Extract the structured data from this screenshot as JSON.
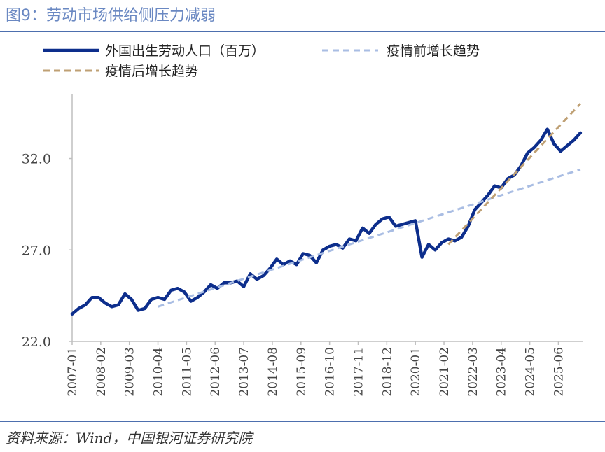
{
  "header": {
    "title": "图9：劳动市场供给侧压力减弱"
  },
  "footer": {
    "source": "资料来源：Wind，中国银河证券研究院"
  },
  "chart_data": {
    "type": "line",
    "title": "图9：劳动市场供给侧压力减弱",
    "xlabel": "",
    "ylabel": "",
    "ylim": [
      22,
      35.5
    ],
    "xlim": [
      "2007-01",
      "2026-05"
    ],
    "yticks": [
      22.0,
      27.0,
      32.0
    ],
    "ytick_labels": [
      "22.0",
      "27.0",
      "32.0"
    ],
    "xticks": [
      "2007-01",
      "2008-02",
      "2009-03",
      "2010-04",
      "2011-05",
      "2012-06",
      "2013-07",
      "2014-08",
      "2015-09",
      "2016-10",
      "2017-11",
      "2018-12",
      "2020-01",
      "2021-02",
      "2022-03",
      "2023-04",
      "2024-05",
      "2025-06"
    ],
    "grid": false,
    "legend_position": "top-left",
    "series": [
      {
        "name": "外国出生劳动人口（百万）",
        "color": "#0d2e8c",
        "style": "solid",
        "points": [
          [
            "2007-01",
            23.5
          ],
          [
            "2007-04",
            23.8
          ],
          [
            "2007-07",
            24.0
          ],
          [
            "2007-10",
            24.4
          ],
          [
            "2008-01",
            24.4
          ],
          [
            "2008-04",
            24.1
          ],
          [
            "2008-07",
            23.9
          ],
          [
            "2008-10",
            24.0
          ],
          [
            "2009-01",
            24.6
          ],
          [
            "2009-04",
            24.3
          ],
          [
            "2009-07",
            23.7
          ],
          [
            "2009-10",
            23.8
          ],
          [
            "2010-01",
            24.3
          ],
          [
            "2010-04",
            24.4
          ],
          [
            "2010-07",
            24.3
          ],
          [
            "2010-10",
            24.8
          ],
          [
            "2011-01",
            24.9
          ],
          [
            "2011-04",
            24.7
          ],
          [
            "2011-07",
            24.2
          ],
          [
            "2011-10",
            24.4
          ],
          [
            "2012-01",
            24.7
          ],
          [
            "2012-04",
            25.1
          ],
          [
            "2012-07",
            24.9
          ],
          [
            "2012-10",
            25.2
          ],
          [
            "2013-01",
            25.2
          ],
          [
            "2013-04",
            25.3
          ],
          [
            "2013-07",
            25.0
          ],
          [
            "2013-10",
            25.7
          ],
          [
            "2014-01",
            25.4
          ],
          [
            "2014-04",
            25.6
          ],
          [
            "2014-07",
            26.0
          ],
          [
            "2014-10",
            26.5
          ],
          [
            "2015-01",
            26.2
          ],
          [
            "2015-04",
            26.4
          ],
          [
            "2015-07",
            26.2
          ],
          [
            "2015-10",
            26.8
          ],
          [
            "2016-01",
            26.7
          ],
          [
            "2016-04",
            26.3
          ],
          [
            "2016-07",
            27.0
          ],
          [
            "2016-10",
            27.2
          ],
          [
            "2017-01",
            27.3
          ],
          [
            "2017-04",
            27.1
          ],
          [
            "2017-07",
            27.6
          ],
          [
            "2017-10",
            27.5
          ],
          [
            "2018-01",
            28.2
          ],
          [
            "2018-04",
            27.9
          ],
          [
            "2018-07",
            28.4
          ],
          [
            "2018-10",
            28.7
          ],
          [
            "2019-01",
            28.8
          ],
          [
            "2019-04",
            28.3
          ],
          [
            "2019-07",
            28.4
          ],
          [
            "2019-10",
            28.5
          ],
          [
            "2020-01",
            28.6
          ],
          [
            "2020-04",
            26.6
          ],
          [
            "2020-07",
            27.3
          ],
          [
            "2020-10",
            27.0
          ],
          [
            "2021-01",
            27.4
          ],
          [
            "2021-04",
            27.6
          ],
          [
            "2021-07",
            27.5
          ],
          [
            "2021-10",
            27.7
          ],
          [
            "2022-01",
            28.3
          ],
          [
            "2022-04",
            29.2
          ],
          [
            "2022-07",
            29.6
          ],
          [
            "2022-10",
            30.0
          ],
          [
            "2023-01",
            30.5
          ],
          [
            "2023-04",
            30.4
          ],
          [
            "2023-07",
            30.9
          ],
          [
            "2023-10",
            31.1
          ],
          [
            "2024-01",
            31.6
          ],
          [
            "2024-04",
            32.3
          ],
          [
            "2024-07",
            32.6
          ],
          [
            "2024-10",
            33.0
          ],
          [
            "2025-01",
            33.6
          ],
          [
            "2025-04",
            32.8
          ],
          [
            "2025-07",
            32.4
          ],
          [
            "2025-10",
            32.7
          ],
          [
            "2026-01",
            33.0
          ],
          [
            "2026-04",
            33.4
          ]
        ]
      },
      {
        "name": "疫情前增长趋势",
        "color": "#a9bde3",
        "style": "dashed",
        "points": [
          [
            "2010-04",
            23.9
          ],
          [
            "2026-04",
            31.4
          ]
        ]
      },
      {
        "name": "疫情后增长趋势",
        "color": "#bfa074",
        "style": "dashed",
        "points": [
          [
            "2021-04",
            27.3
          ],
          [
            "2026-04",
            35.0
          ]
        ]
      }
    ]
  }
}
